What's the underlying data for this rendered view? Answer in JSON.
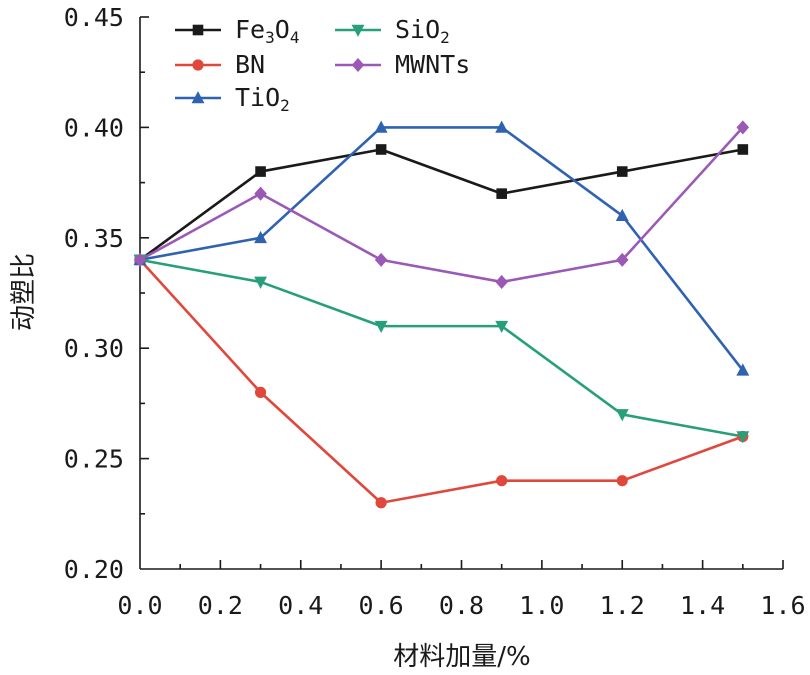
{
  "chart_data": {
    "type": "line",
    "xlabel": "材料加量/%",
    "ylabel": "动塑比",
    "xlim": [
      0.0,
      1.6
    ],
    "ylim": [
      0.2,
      0.45
    ],
    "x_ticks": [
      "0.0",
      "0.2",
      "0.4",
      "0.6",
      "0.8",
      "1.0",
      "1.2",
      "1.4",
      "1.6"
    ],
    "y_ticks": [
      "0.20",
      "0.25",
      "0.30",
      "0.35",
      "0.40",
      "0.45"
    ],
    "x": [
      0.0,
      0.3,
      0.6,
      0.9,
      1.2,
      1.5
    ],
    "grid": false,
    "legend_position": "top-left",
    "series": [
      {
        "name": "Fe3O4",
        "name_base": "Fe",
        "name_sub1": "3",
        "name_mid": "O",
        "name_sub2": "4",
        "color": "#1a1a1a",
        "marker": "square",
        "values": [
          0.34,
          0.38,
          0.39,
          0.37,
          0.38,
          0.39
        ]
      },
      {
        "name": "BN",
        "color": "#e0483c",
        "marker": "circle",
        "values": [
          0.34,
          0.28,
          0.23,
          0.24,
          0.24,
          0.26
        ]
      },
      {
        "name": "TiO2",
        "name_base": "TiO",
        "name_sub1": "2",
        "color": "#2f63b1",
        "marker": "triangle-up",
        "values": [
          0.34,
          0.35,
          0.4,
          0.4,
          0.36,
          0.29
        ]
      },
      {
        "name": "SiO2",
        "name_base": "SiO",
        "name_sub1": "2",
        "color": "#27a07a",
        "marker": "triangle-down",
        "values": [
          0.34,
          0.33,
          0.31,
          0.31,
          0.27,
          0.26
        ]
      },
      {
        "name": "MWNTs",
        "color": "#9b59b6",
        "marker": "diamond",
        "values": [
          0.34,
          0.37,
          0.34,
          0.33,
          0.34,
          0.4
        ]
      }
    ]
  }
}
